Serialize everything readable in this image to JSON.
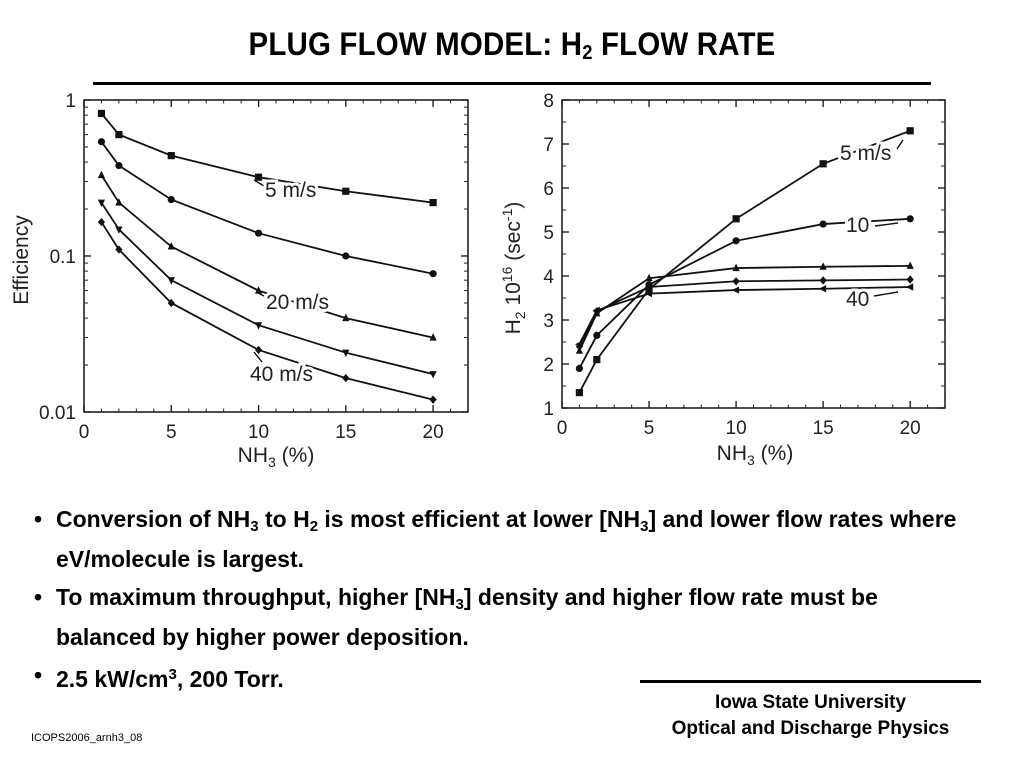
{
  "title": {
    "main": "PLUG FLOW MODEL: H",
    "sub": "2",
    "rest": " FLOW RATE"
  },
  "bullets": [
    {
      "dot": "•",
      "parts": [
        {
          "t": "Conversion of NH"
        },
        {
          "sub": "3"
        },
        {
          "t": " to H"
        },
        {
          "sub": "2"
        },
        {
          "t": " is most efficient at lower [NH"
        },
        {
          "sub": "3"
        },
        {
          "t": "] and lower flow rates where eV/molecule is largest."
        }
      ]
    },
    {
      "dot": "•",
      "parts": [
        {
          "t": "To maximum throughput, higher [NH"
        },
        {
          "sub": "3"
        },
        {
          "t": "] density and higher flow rate must be balanced by higher power deposition."
        }
      ]
    },
    {
      "dot": "•",
      "parts": [
        {
          "t": "2.5 kW/cm"
        },
        {
          "sup": "3"
        },
        {
          "t": ", 200 Torr."
        }
      ]
    }
  ],
  "institution": {
    "line1": "Iowa State University",
    "line2": "Optical and Discharge Physics"
  },
  "footer_code": "ICOPS2006_arnh3_08",
  "chart_data": [
    {
      "type": "line",
      "xlabel": "NH3 (%)",
      "ylabel": "Efficiency",
      "yscale": "log",
      "xlim": [
        0,
        22
      ],
      "ylim": [
        0.01,
        1
      ],
      "xticks": [
        0,
        5,
        10,
        15,
        20
      ],
      "yticks": [
        0.01,
        0.1,
        1
      ],
      "ytick_labels": [
        "0.01",
        "0.1",
        "1"
      ],
      "x": [
        1,
        2,
        5,
        10,
        15,
        20
      ],
      "series": [
        {
          "label": "5 m/s",
          "marker": "square",
          "values": [
            0.82,
            0.6,
            0.44,
            0.32,
            0.26,
            0.22
          ]
        },
        {
          "marker": "circle",
          "values": [
            0.54,
            0.38,
            0.23,
            0.14,
            0.1,
            0.077
          ]
        },
        {
          "label": "20 m/s",
          "marker": "triangle-up",
          "values": [
            0.33,
            0.22,
            0.115,
            0.06,
            0.04,
            0.03
          ]
        },
        {
          "marker": "triangle-down",
          "values": [
            0.22,
            0.148,
            0.07,
            0.036,
            0.024,
            0.0175
          ]
        },
        {
          "label": "40 m/s",
          "marker": "diamond",
          "values": [
            0.165,
            0.11,
            0.05,
            0.025,
            0.0165,
            0.012
          ]
        }
      ]
    },
    {
      "type": "line",
      "xlabel": "NH3 (%)",
      "ylabel": "H2 10^16 (sec^-1)",
      "xlim": [
        0,
        22
      ],
      "ylim": [
        1,
        8
      ],
      "xticks": [
        0,
        5,
        10,
        15,
        20
      ],
      "yticks": [
        1,
        2,
        3,
        4,
        5,
        6,
        7,
        8
      ],
      "x": [
        1,
        2,
        5,
        10,
        15,
        20
      ],
      "series": [
        {
          "label": "5 m/s",
          "marker": "square",
          "values": [
            1.35,
            2.1,
            3.7,
            5.3,
            6.55,
            7.3
          ]
        },
        {
          "label": "10",
          "marker": "circle",
          "values": [
            1.9,
            2.65,
            3.8,
            4.8,
            5.18,
            5.3
          ]
        },
        {
          "marker": "triangle-up",
          "values": [
            2.3,
            3.15,
            3.95,
            4.18,
            4.21,
            4.23
          ]
        },
        {
          "marker": "diamond",
          "values": [
            2.4,
            3.2,
            3.75,
            3.88,
            3.9,
            3.92
          ]
        },
        {
          "label": "40",
          "marker": "triangle-left",
          "values": [
            2.45,
            3.22,
            3.6,
            3.68,
            3.71,
            3.75
          ]
        }
      ]
    }
  ]
}
